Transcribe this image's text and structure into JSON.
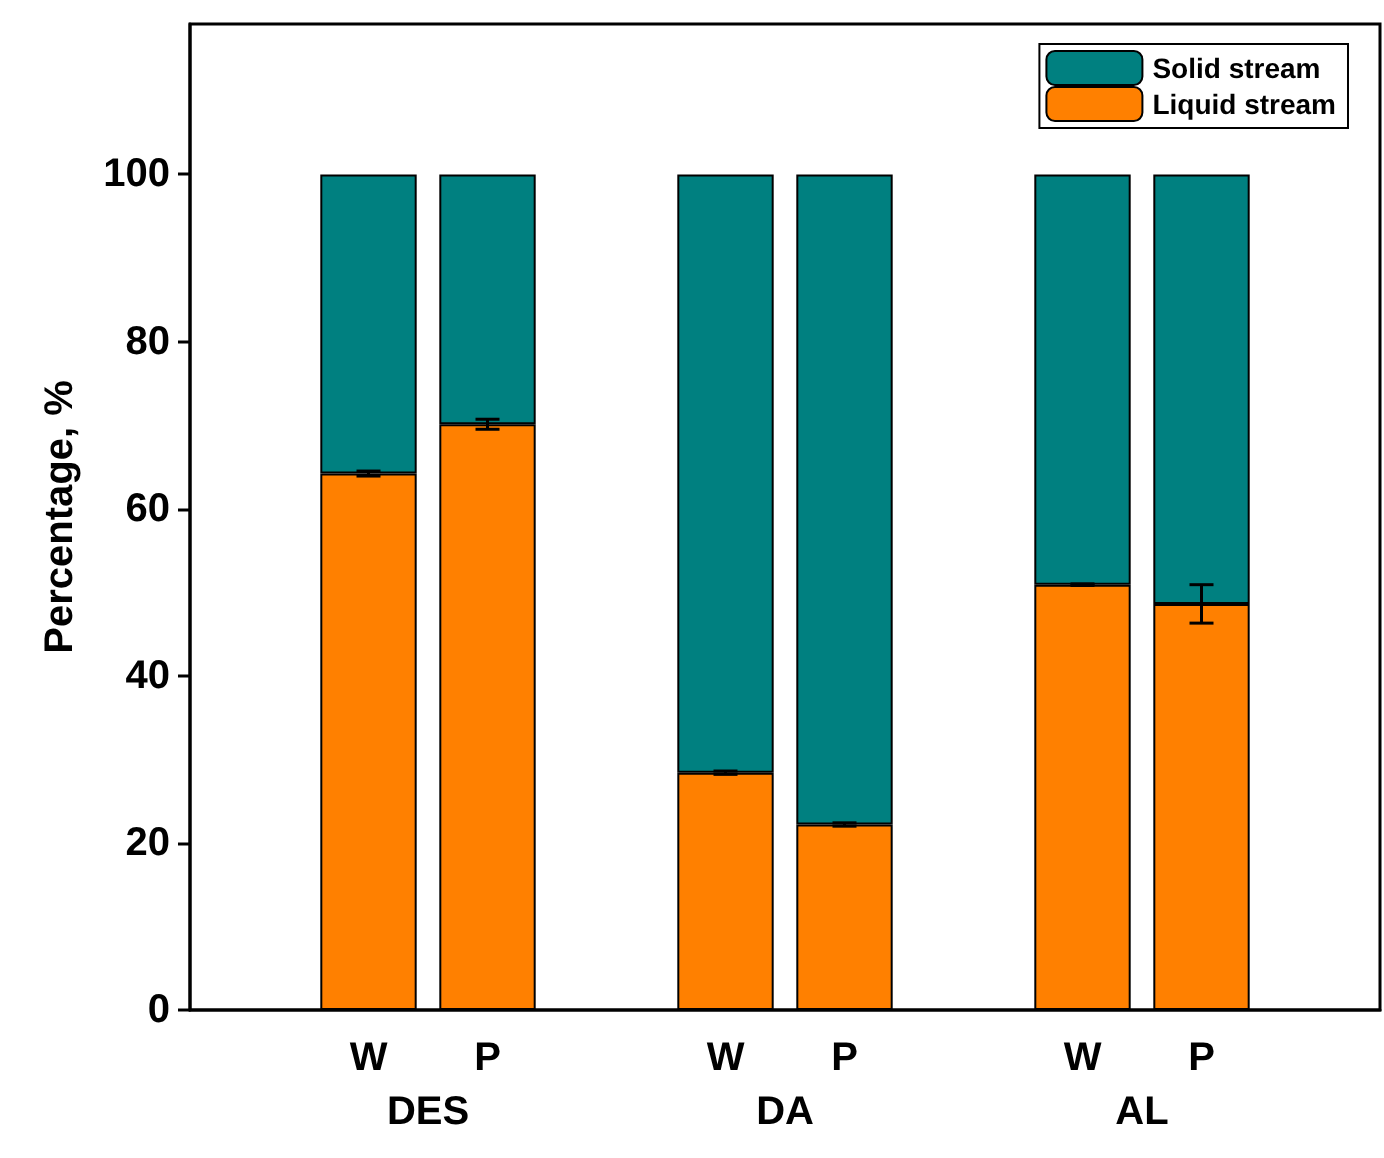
{
  "chart_data": {
    "type": "bar",
    "stacked": true,
    "ylabel": "Percentage, %",
    "categories": [
      null,
      "W",
      "P",
      null,
      "W",
      "P",
      null,
      "W",
      "P",
      null
    ],
    "series": [
      {
        "name": "Liquid stream",
        "color": "#ff8000",
        "values": [
          null,
          64.2,
          70.1,
          null,
          28.4,
          22.2,
          null,
          50.9,
          48.6,
          null
        ],
        "errors": [
          null,
          0.3,
          0.6,
          null,
          0.2,
          0.2,
          null,
          0.1,
          2.3,
          null
        ]
      },
      {
        "name": "Solid stream",
        "color": "#008080",
        "values": [
          null,
          35.8,
          29.9,
          null,
          71.6,
          77.8,
          null,
          49.1,
          51.4,
          null
        ]
      }
    ],
    "annotations": [
      "DES",
      "DA",
      "AL"
    ],
    "ylim": [
      0,
      118
    ],
    "yticks": [
      0,
      20,
      40,
      60,
      80,
      100
    ],
    "grid": false,
    "legend": "top right"
  }
}
